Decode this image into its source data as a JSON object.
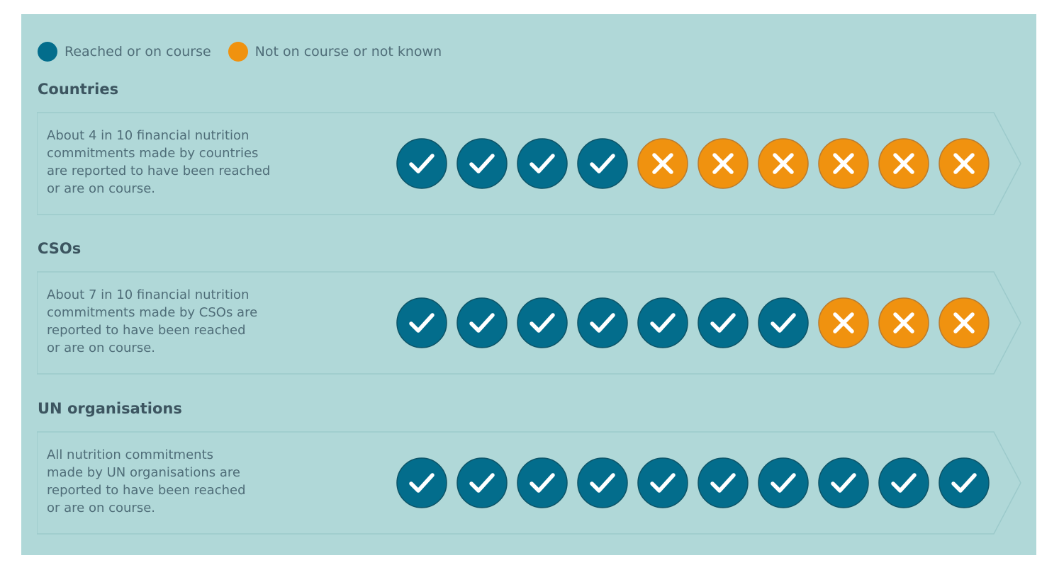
{
  "colors": {
    "background": "#b0d8d8",
    "reached": "#036d8c",
    "not_reached": "#f0920f",
    "row_bg": "#b0d8d8",
    "row_border": "#9ccacb"
  },
  "legend": [
    {
      "label": "Reached or on course",
      "color": "#036d8c",
      "icon": "filled-circle-icon"
    },
    {
      "label": "Not on course or not known",
      "color": "#f0920f",
      "icon": "filled-circle-icon"
    }
  ],
  "chart_data": {
    "type": "table",
    "unit_total": 10,
    "rows": [
      {
        "title": "Countries",
        "text": "About 4 in 10 financial nutrition\ncommitments made by countries\nare reported to have been reached\nor are on course.",
        "reached": 4,
        "not_reached": 6
      },
      {
        "title": "CSOs",
        "text": "About 7 in 10 financial nutrition\ncommitments made by CSOs are\nreported to have been reached\nor are on course.",
        "reached": 7,
        "not_reached": 3
      },
      {
        "title": "UN organisations",
        "text": "All nutrition commitments\nmade by UN organisations are\nreported to have been reached\nor are on course.",
        "reached": 10,
        "not_reached": 0
      }
    ]
  }
}
